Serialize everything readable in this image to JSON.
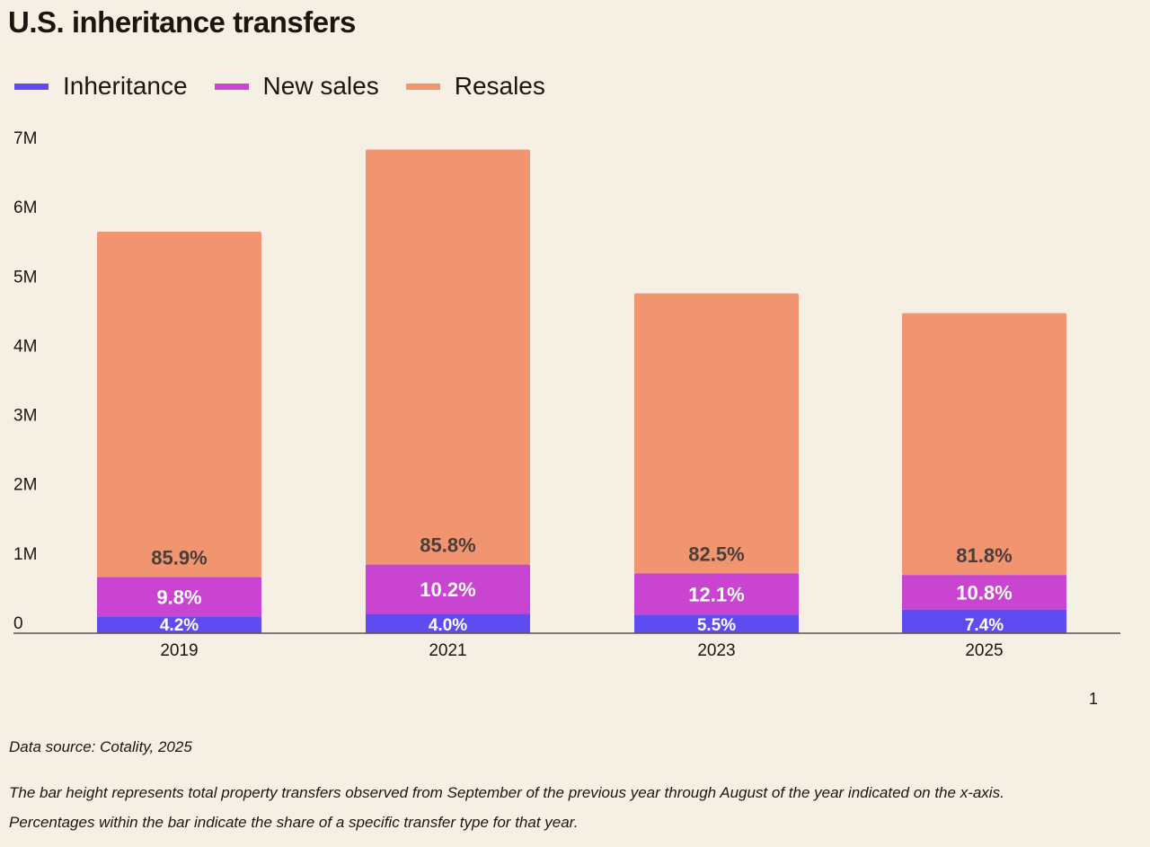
{
  "chart_data": {
    "type": "bar",
    "stacked": true,
    "title": "U.S. inheritance transfers",
    "categories": [
      "2019",
      "2021",
      "2023",
      "2025"
    ],
    "totals_millions": [
      5.8,
      6.98,
      4.9,
      4.62
    ],
    "series": [
      {
        "name": "Inheritance",
        "color": "#5f4cf0",
        "share_pct": [
          4.2,
          4.0,
          5.5,
          7.4
        ],
        "labels": [
          "4.2%",
          "4.0%",
          "5.5%",
          "7.4%"
        ]
      },
      {
        "name": "New sales",
        "color": "#c944d0",
        "share_pct": [
          9.8,
          10.2,
          12.1,
          10.8
        ],
        "labels": [
          "9.8%",
          "10.2%",
          "12.1%",
          "10.8%"
        ]
      },
      {
        "name": "Resales",
        "color": "#f0956f",
        "share_pct": [
          85.9,
          85.8,
          82.5,
          81.8
        ],
        "labels": [
          "85.9%",
          "85.8%",
          "82.5%",
          "81.8%"
        ]
      }
    ],
    "ylim": [
      0,
      7
    ],
    "y_ticks": [
      "0",
      "1M",
      "2M",
      "3M",
      "4M",
      "5M",
      "6M",
      "7M"
    ],
    "grid": false,
    "legend_position": "top-left"
  },
  "page_number": "1",
  "footer": {
    "source": "Data source: Cotality, 2025",
    "note1": "The bar height represents total property transfers observed from September of the previous year through August of the year indicated on the x-axis.",
    "note2": "Percentages within the bar indicate the share of a specific transfer type for that year."
  }
}
